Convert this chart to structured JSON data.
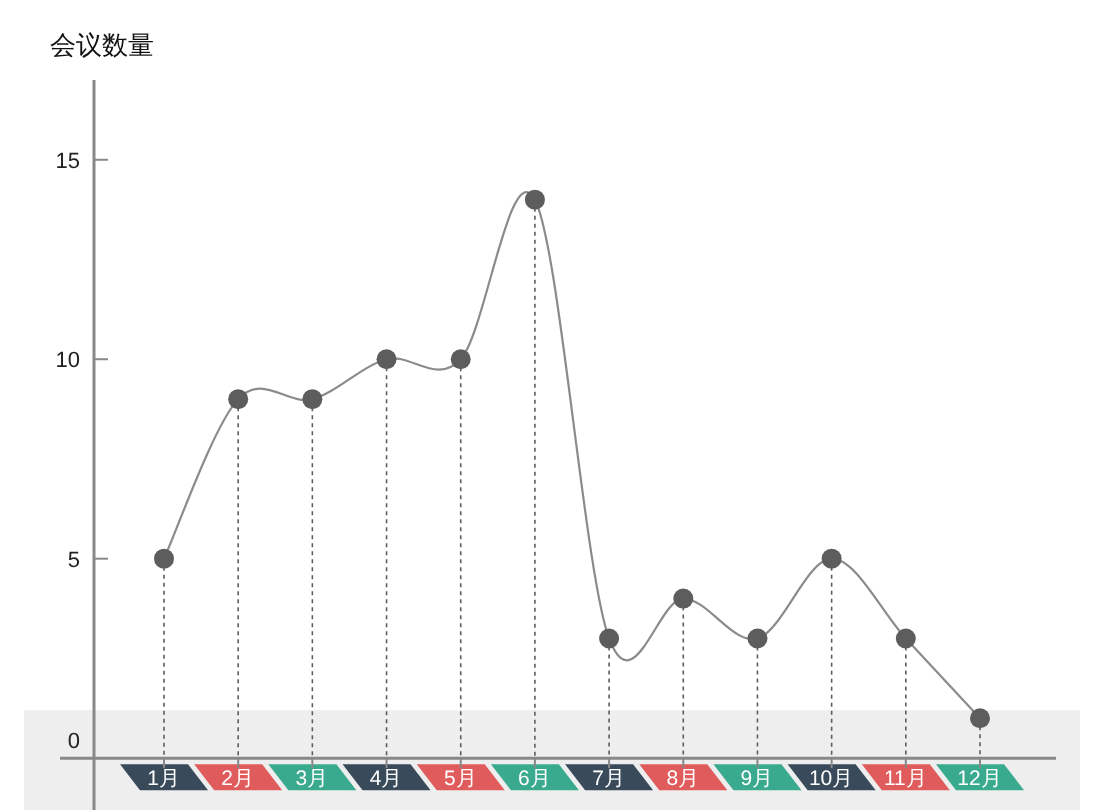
{
  "chart_data": {
    "type": "line",
    "ylabel": "会议数量",
    "categories": [
      "1月",
      "2月",
      "3月",
      "4月",
      "5月",
      "6月",
      "7月",
      "8月",
      "9月",
      "10月",
      "11月",
      "12月"
    ],
    "series": [
      {
        "color": "#777777",
        "marker": "none",
        "line_style": "solid",
        "values": [
          5,
          9,
          9,
          10,
          10,
          14,
          3,
          4,
          3,
          5,
          3,
          1
        ]
      },
      {
        "type": "lollipop",
        "color": "#5d5d5d",
        "marker": "circle",
        "line_style": "dotted",
        "values": [
          5,
          9,
          9,
          10,
          10,
          14,
          3,
          4,
          3,
          5,
          3,
          1
        ]
      }
    ],
    "ylim": [
      -1.3,
      17
    ],
    "yticks": [
      0,
      5,
      10,
      15
    ],
    "bands": [
      {
        "axis": "y",
        "from": -1.3,
        "to": 1.2,
        "color": "#eeeeee"
      }
    ]
  }
}
